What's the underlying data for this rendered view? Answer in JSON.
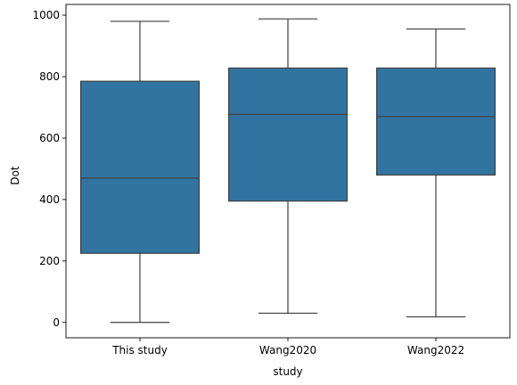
{
  "chart_data": {
    "type": "box",
    "categories": [
      "This study",
      "Wang2020",
      "Wang2022"
    ],
    "boxes": [
      {
        "whisker_low": 0,
        "q1": 225,
        "median": 470,
        "q3": 785,
        "whisker_high": 980
      },
      {
        "whisker_low": 30,
        "q1": 395,
        "median": 677,
        "q3": 828,
        "whisker_high": 988
      },
      {
        "whisker_low": 18,
        "q1": 480,
        "median": 670,
        "q3": 828,
        "whisker_high": 955
      }
    ],
    "xlabel": "study",
    "ylabel": "Dot",
    "ylim": [
      -50,
      1035
    ],
    "yticks": [
      0,
      200,
      400,
      600,
      800,
      1000
    ],
    "grid": false,
    "colors": {
      "box_fill": "#3274a1",
      "line": "#3f3f3f",
      "axis": "#000000"
    }
  }
}
